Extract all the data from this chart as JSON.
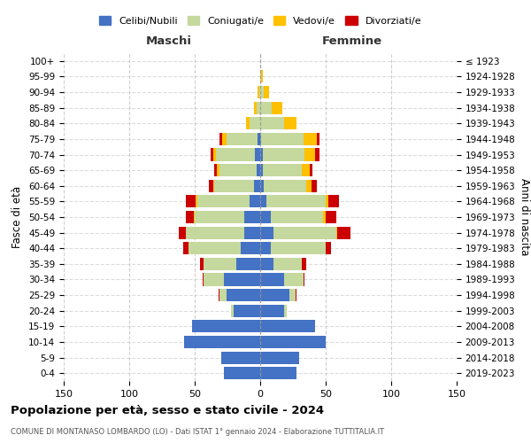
{
  "age_groups": [
    "0-4",
    "5-9",
    "10-14",
    "15-19",
    "20-24",
    "25-29",
    "30-34",
    "35-39",
    "40-44",
    "45-49",
    "50-54",
    "55-59",
    "60-64",
    "65-69",
    "70-74",
    "75-79",
    "80-84",
    "85-89",
    "90-94",
    "95-99",
    "100+"
  ],
  "birth_years": [
    "2019-2023",
    "2014-2018",
    "2009-2013",
    "2004-2008",
    "1999-2003",
    "1994-1998",
    "1989-1993",
    "1984-1988",
    "1979-1983",
    "1974-1978",
    "1969-1973",
    "1964-1968",
    "1959-1963",
    "1954-1958",
    "1949-1953",
    "1944-1948",
    "1939-1943",
    "1934-1938",
    "1929-1933",
    "1924-1928",
    "≤ 1923"
  ],
  "colors": {
    "celibe": "#4472c4",
    "coniugato": "#c5d89d",
    "vedovo": "#ffc000",
    "divorziato": "#cc0000"
  },
  "males": {
    "celibe": [
      28,
      30,
      58,
      52,
      20,
      26,
      28,
      18,
      15,
      12,
      12,
      8,
      5,
      3,
      4,
      2,
      0,
      0,
      0,
      0,
      0
    ],
    "coniugato": [
      0,
      0,
      0,
      0,
      2,
      5,
      15,
      25,
      40,
      45,
      38,
      40,
      30,
      28,
      30,
      24,
      8,
      3,
      1,
      0,
      0
    ],
    "vedovo": [
      0,
      0,
      0,
      0,
      0,
      0,
      0,
      0,
      0,
      0,
      1,
      1,
      1,
      2,
      2,
      3,
      3,
      2,
      1,
      0,
      0
    ],
    "divorziato": [
      0,
      0,
      0,
      0,
      0,
      1,
      1,
      3,
      4,
      5,
      6,
      8,
      3,
      2,
      2,
      2,
      0,
      0,
      0,
      0,
      0
    ]
  },
  "females": {
    "nubile": [
      28,
      30,
      50,
      42,
      18,
      22,
      18,
      10,
      8,
      10,
      8,
      5,
      3,
      2,
      2,
      1,
      0,
      0,
      0,
      0,
      0
    ],
    "coniugata": [
      0,
      0,
      0,
      0,
      2,
      5,
      15,
      22,
      42,
      48,
      40,
      45,
      32,
      30,
      32,
      32,
      18,
      9,
      3,
      1,
      0
    ],
    "vedova": [
      0,
      0,
      0,
      0,
      0,
      0,
      0,
      0,
      0,
      1,
      2,
      2,
      4,
      6,
      8,
      10,
      10,
      8,
      4,
      1,
      0
    ],
    "divorziata": [
      0,
      0,
      0,
      0,
      0,
      1,
      1,
      3,
      4,
      10,
      8,
      8,
      4,
      2,
      3,
      2,
      0,
      0,
      0,
      0,
      0
    ]
  },
  "xlim": 150,
  "title": "Popolazione per età, sesso e stato civile - 2024",
  "subtitle": "COMUNE DI MONTANASO LOMBARDO (LO) - Dati ISTAT 1° gennaio 2024 - Elaborazione TUTTITALIA.IT",
  "ylabel_left": "Fasce di età",
  "ylabel_right": "Anni di nascita",
  "maschi_label": "Maschi",
  "femmine_label": "Femmine",
  "legend_labels": [
    "Celibi/Nubili",
    "Coniugati/e",
    "Vedovi/e",
    "Divorziati/e"
  ]
}
